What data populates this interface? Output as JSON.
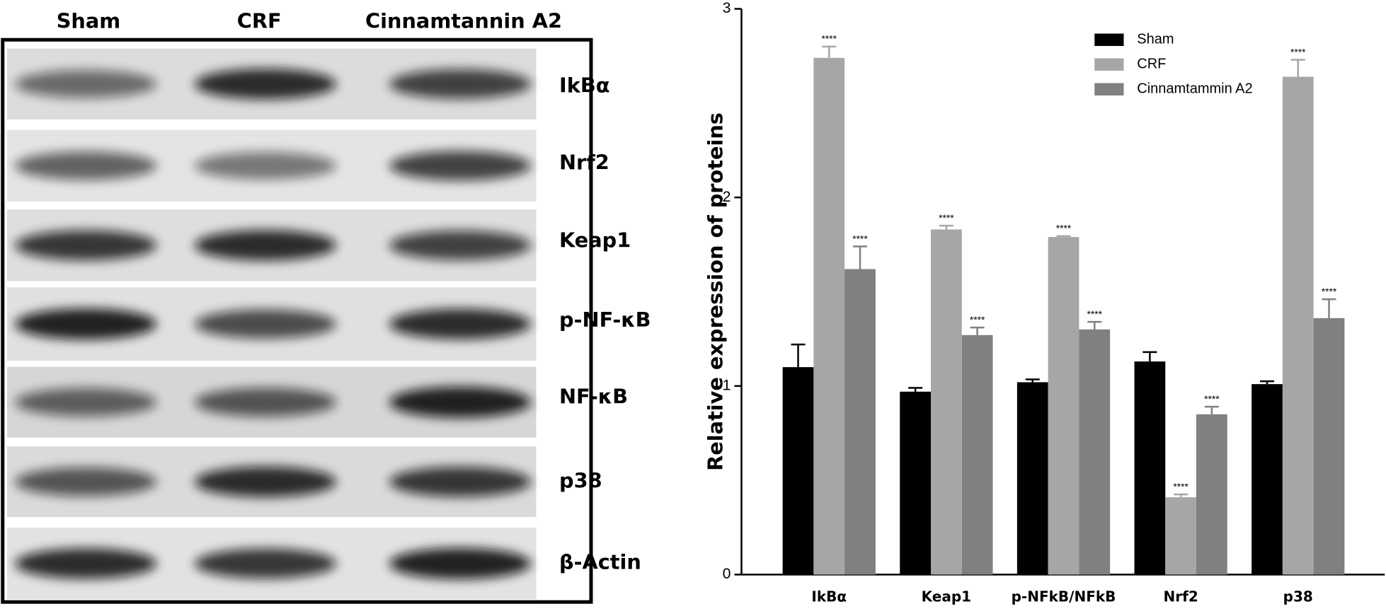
{
  "blot": {
    "lanes": [
      "Sham",
      "CRF",
      "Cinnamtannin A2"
    ],
    "proteins": [
      "IkBα",
      "Nrf2",
      "Keap1",
      "p-NF-κB",
      "NF-κB",
      "p38",
      "β-Actin"
    ]
  },
  "chart_data": {
    "type": "bar",
    "ylabel": "Relative expression of proteins",
    "categories": [
      "IkBα",
      "Keap1",
      "p-NFkB/NFkB",
      "Nrf2",
      "p38"
    ],
    "series": [
      {
        "name": "Sham",
        "color": "#000000",
        "values": [
          1.1,
          0.97,
          1.02,
          1.13,
          1.01
        ],
        "errors": [
          0.12,
          0.02,
          0.015,
          0.05,
          0.015
        ]
      },
      {
        "name": "CRF",
        "color": "#a6a6a6",
        "values": [
          2.74,
          1.83,
          1.79,
          0.41,
          2.64
        ],
        "errors": [
          0.06,
          0.02,
          0.005,
          0.015,
          0.09
        ],
        "annotations": [
          "****",
          "****",
          "****",
          "****",
          "****"
        ]
      },
      {
        "name": "Cinnamtammin A2",
        "color": "#808080",
        "values": [
          1.62,
          1.27,
          1.3,
          0.85,
          1.36
        ],
        "errors": [
          0.12,
          0.04,
          0.04,
          0.04,
          0.1
        ],
        "annotations": [
          "****",
          "****",
          "****",
          "****",
          "****"
        ]
      }
    ],
    "ylim": [
      0,
      3
    ],
    "yticks": [
      0,
      1,
      2,
      3
    ],
    "grid": false,
    "legend": "upper right"
  }
}
